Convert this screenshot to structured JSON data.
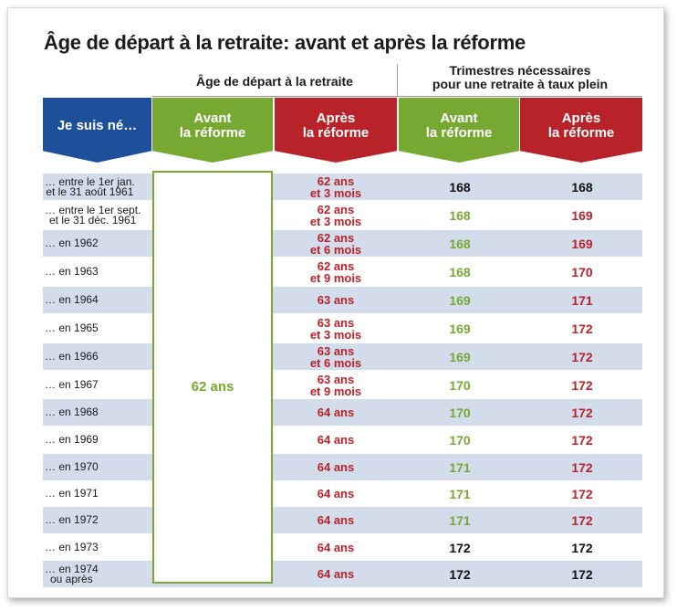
{
  "title": "Âge de départ à la retraite: avant et après la réforme",
  "groups": {
    "age": "Âge de départ à la retraite",
    "trimestres": "Trimestres nécessaires\npour une retraite à taux plein"
  },
  "headers": {
    "born": "Je suis né…",
    "age_before": "Avant\nla réforme",
    "age_after": "Après\nla réforme",
    "tq_before": "Avant\nla réforme",
    "tq_after": "Après\nla réforme"
  },
  "age_before_all": "62 ans",
  "colors": {
    "blue": "#1d4f9b",
    "green": "#77a832",
    "red": "#b8232a",
    "row_shade": "#d3dcea"
  },
  "rows": [
    {
      "born": "… entre le 1er jan.\net le 31 août 1961",
      "age_after": "62 ans\net 3 mois",
      "tq_before": "168",
      "tq_after": "168",
      "tq_before_color": "black",
      "tq_after_color": "black"
    },
    {
      "born": "… entre le 1er sept.\net le 31 déc. 1961",
      "age_after": "62 ans\net 3 mois",
      "tq_before": "168",
      "tq_after": "169",
      "tq_before_color": "green",
      "tq_after_color": "red"
    },
    {
      "born": "… en 1962",
      "age_after": "62 ans\net 6 mois",
      "tq_before": "168",
      "tq_after": "169",
      "tq_before_color": "green",
      "tq_after_color": "red"
    },
    {
      "born": "… en 1963",
      "age_after": "62 ans\net 9 mois",
      "tq_before": "168",
      "tq_after": "170",
      "tq_before_color": "green",
      "tq_after_color": "red"
    },
    {
      "born": "… en 1964",
      "age_after": "63 ans",
      "tq_before": "169",
      "tq_after": "171",
      "tq_before_color": "green",
      "tq_after_color": "red"
    },
    {
      "born": "… en 1965",
      "age_after": "63 ans\net 3 mois",
      "tq_before": "169",
      "tq_after": "172",
      "tq_before_color": "green",
      "tq_after_color": "red"
    },
    {
      "born": "… en 1966",
      "age_after": "63 ans\net 6 mois",
      "tq_before": "169",
      "tq_after": "172",
      "tq_before_color": "green",
      "tq_after_color": "red"
    },
    {
      "born": "… en 1967",
      "age_after": "63 ans\net 9 mois",
      "tq_before": "170",
      "tq_after": "172",
      "tq_before_color": "green",
      "tq_after_color": "red"
    },
    {
      "born": "… en 1968",
      "age_after": "64 ans",
      "tq_before": "170",
      "tq_after": "172",
      "tq_before_color": "green",
      "tq_after_color": "red"
    },
    {
      "born": "… en 1969",
      "age_after": "64 ans",
      "tq_before": "170",
      "tq_after": "172",
      "tq_before_color": "green",
      "tq_after_color": "red"
    },
    {
      "born": "… en 1970",
      "age_after": "64 ans",
      "tq_before": "171",
      "tq_after": "172",
      "tq_before_color": "green",
      "tq_after_color": "red"
    },
    {
      "born": "… en 1971",
      "age_after": "64 ans",
      "tq_before": "171",
      "tq_after": "172",
      "tq_before_color": "green",
      "tq_after_color": "red"
    },
    {
      "born": "… en 1972",
      "age_after": "64 ans",
      "tq_before": "171",
      "tq_after": "172",
      "tq_before_color": "green",
      "tq_after_color": "red"
    },
    {
      "born": "… en 1973",
      "age_after": "64 ans",
      "tq_before": "172",
      "tq_after": "172",
      "tq_before_color": "black",
      "tq_after_color": "black"
    },
    {
      "born": "… en 1974\nou après",
      "age_after": "64 ans",
      "tq_before": "172",
      "tq_after": "172",
      "tq_before_color": "black",
      "tq_after_color": "black"
    }
  ]
}
